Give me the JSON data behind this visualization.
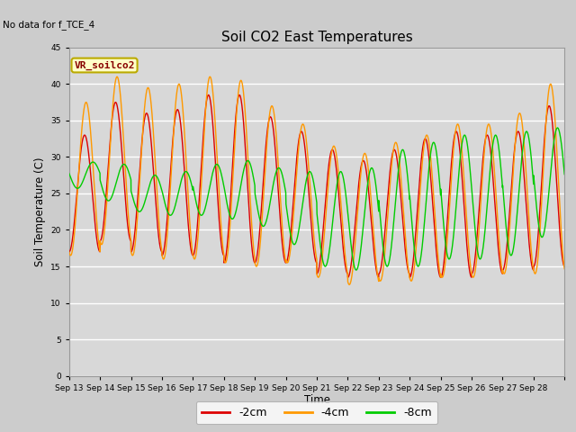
{
  "title": "Soil CO2 East Temperatures",
  "no_data_text": "No data for f_TCE_4",
  "ylabel": "Soil Temperature (C)",
  "xlabel": "Time",
  "ylim": [
    0,
    45
  ],
  "yticks": [
    0,
    5,
    10,
    15,
    20,
    25,
    30,
    35,
    40,
    45
  ],
  "x_labels": [
    "Sep 13",
    "Sep 14",
    "Sep 15",
    "Sep 16",
    "Sep 17",
    "Sep 18",
    "Sep 19",
    "Sep 20",
    "Sep 21",
    "Sep 22",
    "Sep 23",
    "Sep 24",
    "Sep 25",
    "Sep 26",
    "Sep 27",
    "Sep 28"
  ],
  "legend_box_label": "VR_soilco2",
  "legend_box_facecolor": "#ffffc8",
  "legend_box_edgecolor": "#bbaa00",
  "legend_box_textcolor": "#880000",
  "line_colors": [
    "#dd0000",
    "#ff9900",
    "#00cc00"
  ],
  "line_labels": [
    "-2cm",
    "-4cm",
    "-8cm"
  ],
  "fig_facecolor": "#cccccc",
  "plot_bg_color": "#d8d8d8",
  "grid_color": "#ffffff",
  "days": 16,
  "samples_per_day": 288,
  "amp_2cm": [
    8.0,
    9.5,
    9.5,
    10.0,
    11.0,
    11.5,
    10.0,
    9.0,
    8.5,
    8.0,
    8.5,
    9.5,
    10.0,
    9.5,
    9.5,
    11.0
  ],
  "mid_2cm": [
    25.0,
    28.0,
    26.5,
    26.5,
    27.5,
    27.0,
    25.5,
    24.5,
    22.5,
    21.5,
    22.5,
    23.0,
    23.5,
    23.5,
    24.0,
    26.0
  ],
  "amp_4cm": [
    10.5,
    11.5,
    11.5,
    12.0,
    12.5,
    12.5,
    11.0,
    9.5,
    9.0,
    9.0,
    9.5,
    10.0,
    10.5,
    10.5,
    11.0,
    13.0
  ],
  "mid_4cm": [
    27.0,
    29.5,
    28.0,
    28.0,
    28.5,
    28.0,
    26.0,
    25.0,
    22.5,
    21.5,
    22.5,
    23.0,
    24.0,
    24.0,
    25.0,
    27.0
  ],
  "amp_8cm": [
    1.8,
    2.5,
    2.5,
    3.0,
    3.5,
    4.0,
    4.0,
    5.0,
    6.5,
    7.0,
    8.0,
    8.5,
    8.5,
    8.5,
    8.5,
    7.5
  ],
  "mid_8cm": [
    27.5,
    26.5,
    25.0,
    25.0,
    25.5,
    25.5,
    24.5,
    23.0,
    21.5,
    21.5,
    23.0,
    23.5,
    24.5,
    24.5,
    25.0,
    26.5
  ],
  "phase_2cm": -1.5707963,
  "phase_4cm": -1.8707963,
  "phase_8cm": -3.2707963
}
